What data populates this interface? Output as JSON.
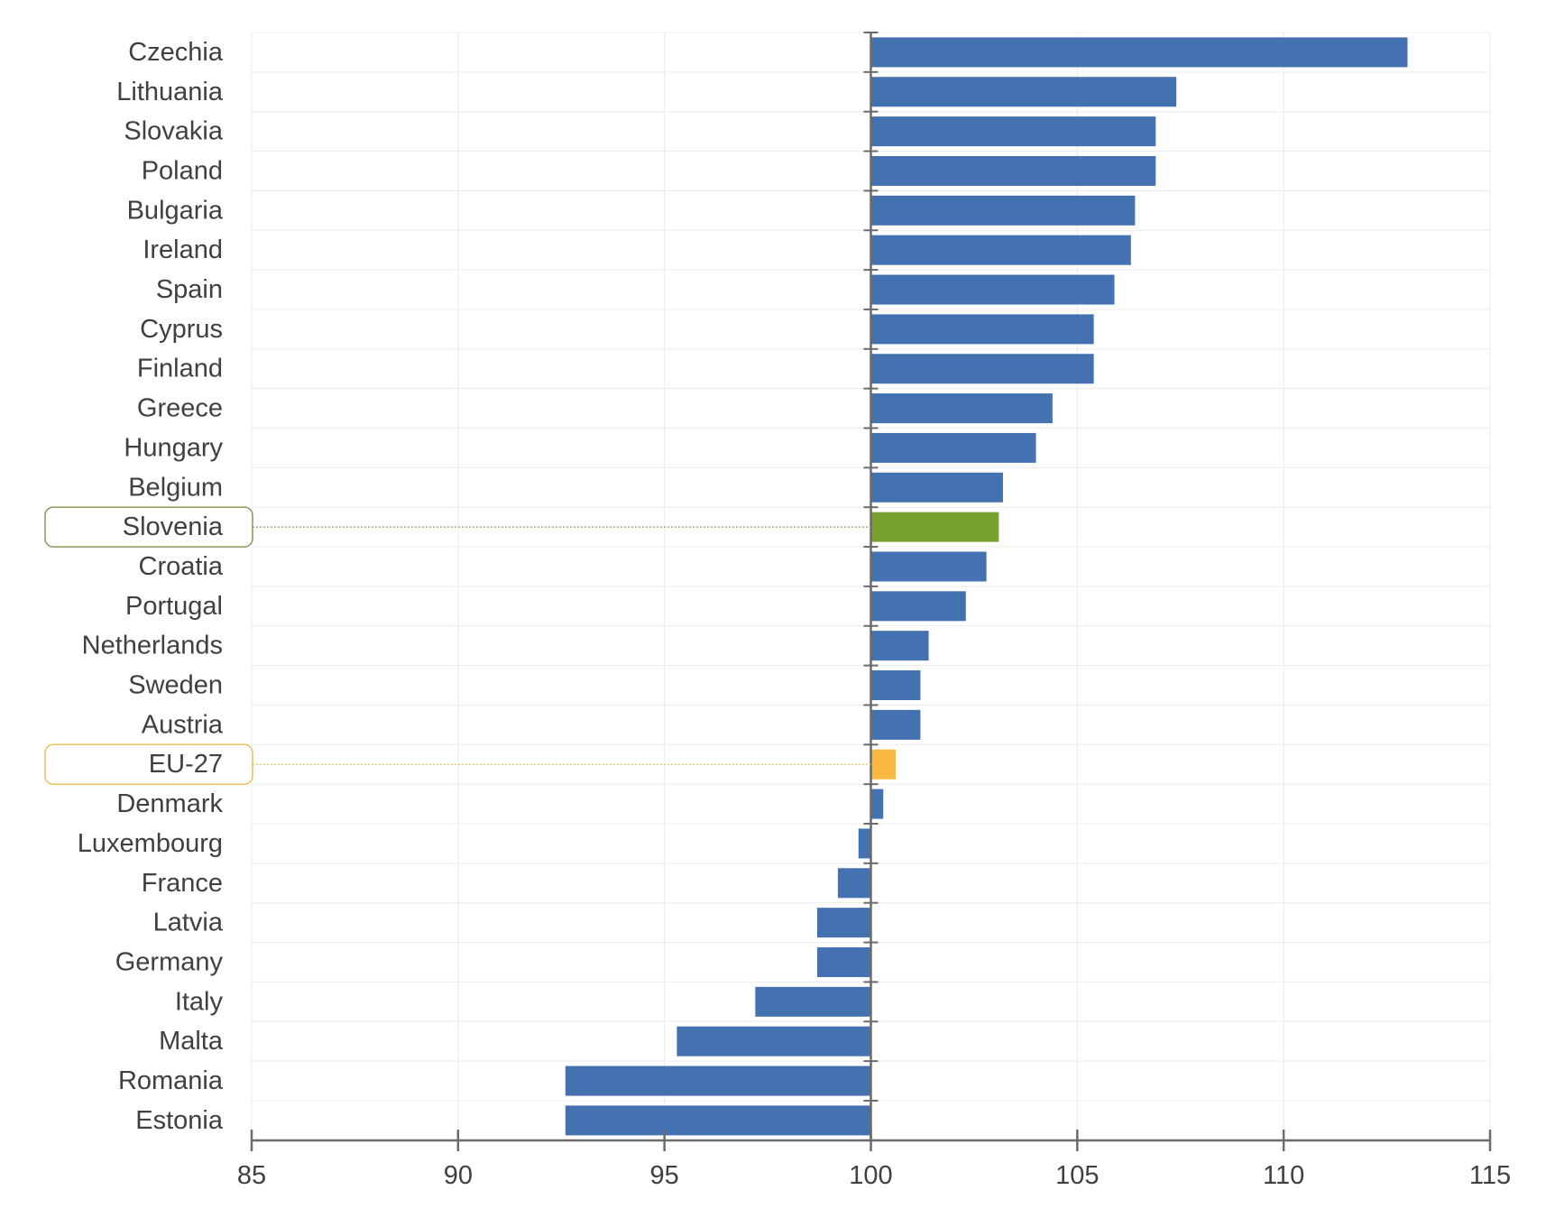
{
  "chart_data": {
    "type": "bar",
    "orientation": "horizontal",
    "baseline": 100,
    "xlim": [
      85,
      115
    ],
    "xticks": [
      "85",
      "90",
      "95",
      "100",
      "105",
      "110",
      "115"
    ],
    "grid": true,
    "categories": [
      "Czechia",
      "Lithuania",
      "Slovakia",
      "Poland",
      "Bulgaria",
      "Ireland",
      "Spain",
      "Cyprus",
      "Finland",
      "Greece",
      "Hungary",
      "Belgium",
      "Slovenia",
      "Croatia",
      "Portugal",
      "Netherlands",
      "Sweden",
      "Austria",
      "EU-27",
      "Denmark",
      "Luxembourg",
      "France",
      "Latvia",
      "Germany",
      "Italy",
      "Malta",
      "Romania",
      "Estonia"
    ],
    "values": [
      113.0,
      107.4,
      106.9,
      106.9,
      106.4,
      106.3,
      105.9,
      105.4,
      105.4,
      104.4,
      104.0,
      103.2,
      103.1,
      102.8,
      102.3,
      101.4,
      101.2,
      101.2,
      100.6,
      100.3,
      99.7,
      99.2,
      98.7,
      98.7,
      97.2,
      95.3,
      92.6,
      92.6
    ],
    "highlights": {
      "Slovenia": {
        "color": "#77a22f",
        "frame": "#8a9a58"
      },
      "EU-27": {
        "color": "#f8b73e",
        "frame": "#e6c45c"
      }
    },
    "colors": {
      "bar": "#4472b0",
      "axis": "#6b6b6b",
      "grid": "#ececec",
      "text": "#404040"
    }
  }
}
